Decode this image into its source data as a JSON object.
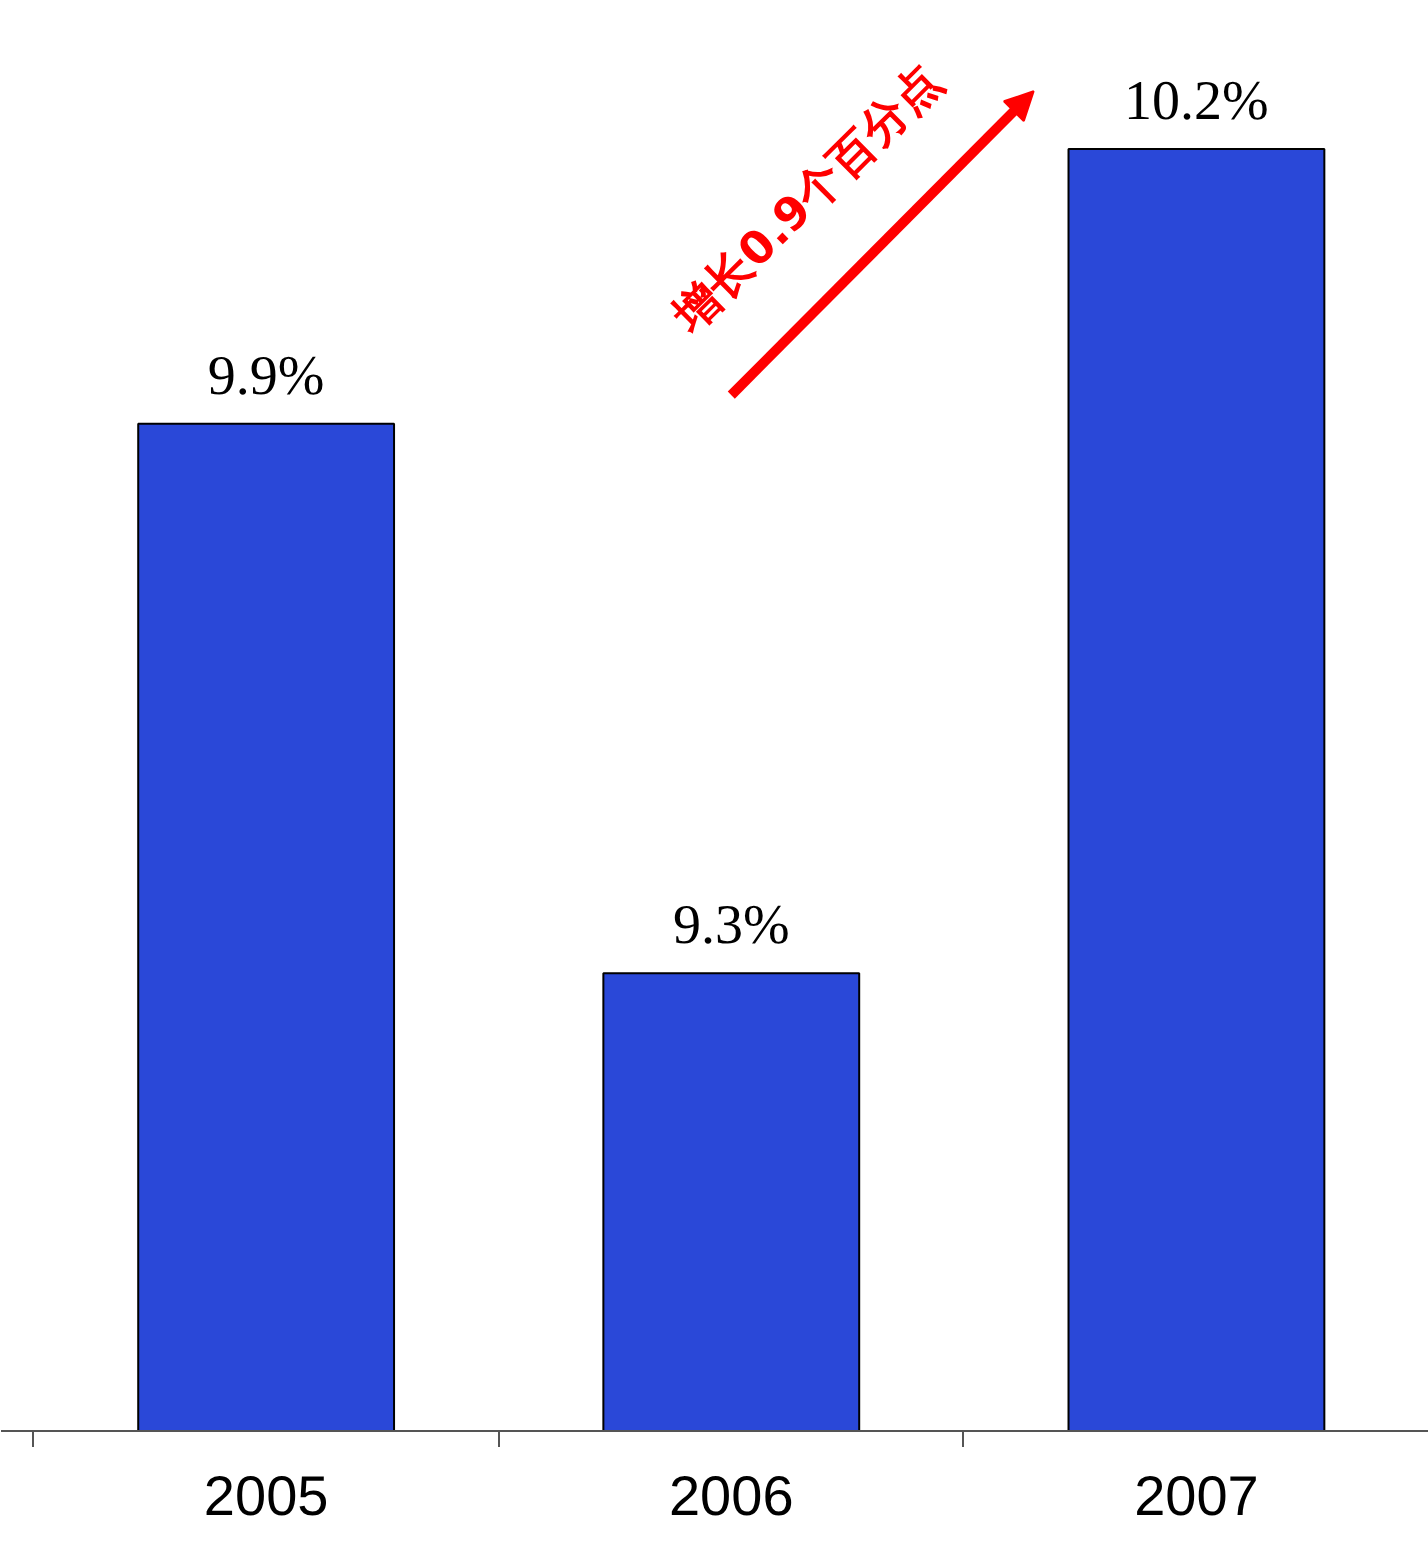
{
  "chart_data": {
    "type": "bar",
    "categories": [
      "2005",
      "2006",
      "2007"
    ],
    "values": [
      9.9,
      9.3,
      10.2
    ],
    "value_labels": [
      "9.9%",
      "9.3%",
      "10.2%"
    ],
    "color": "#2a48d8",
    "ylim": [
      8.8,
      10.2
    ],
    "annotations": [
      "增长0.9个百分点"
    ]
  }
}
